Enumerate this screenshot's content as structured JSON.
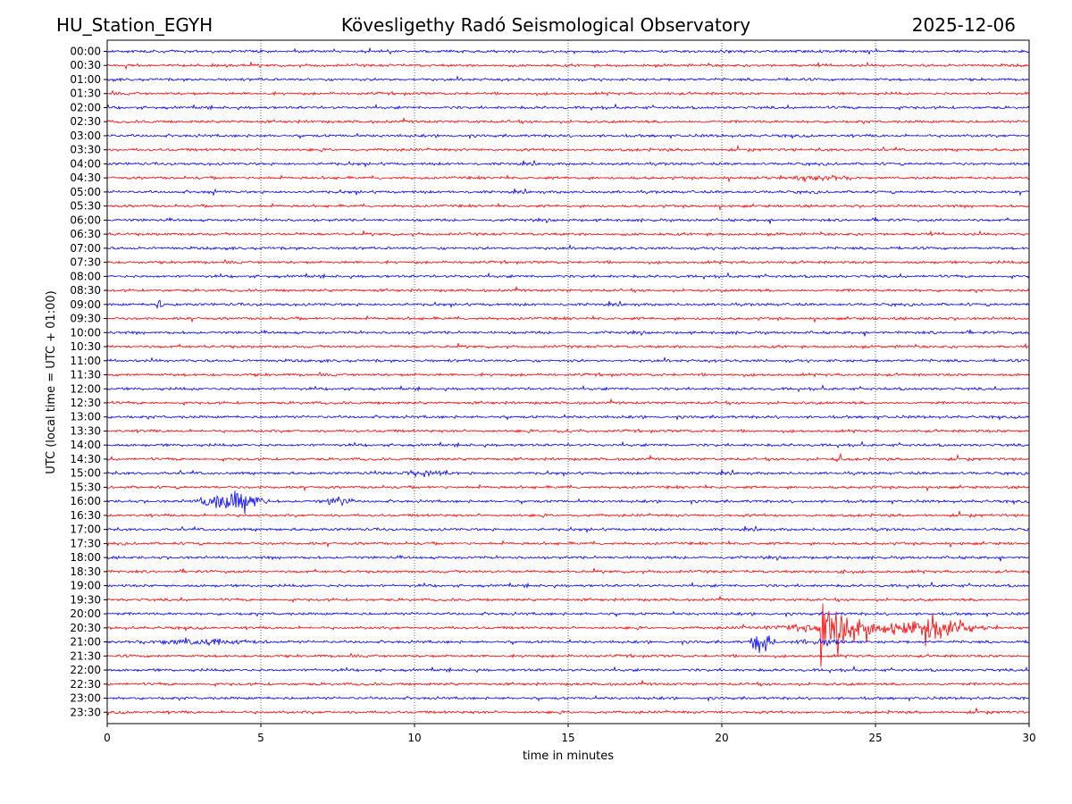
{
  "header": {
    "station": "HU_Station_EGYH",
    "observatory": "Kövesligethy Radó Seismological Observatory",
    "date": "2025-12-06"
  },
  "chart_data": {
    "type": "line",
    "title": "Kövesligethy Radó Seismological Observatory",
    "xlabel": "time in minutes",
    "ylabel": "UTC (local time = UTC + 01:00)",
    "xlim": [
      0,
      30
    ],
    "xticks": [
      "0",
      "5",
      "10",
      "15",
      "20",
      "25",
      "30"
    ],
    "xtick_values": [
      0,
      5,
      10,
      15,
      20,
      25,
      30
    ],
    "grid": "vertical dotted lines at x ticks",
    "colors": {
      "even_rows": "#0000ff",
      "odd_rows": "#ff0000"
    },
    "rows": [
      "00:00",
      "00:30",
      "01:00",
      "01:30",
      "02:00",
      "02:30",
      "03:00",
      "03:30",
      "04:00",
      "04:30",
      "05:00",
      "05:30",
      "06:00",
      "06:30",
      "07:00",
      "07:30",
      "08:00",
      "08:30",
      "09:00",
      "09:30",
      "10:00",
      "10:30",
      "11:00",
      "11:30",
      "12:00",
      "12:30",
      "13:00",
      "13:30",
      "14:00",
      "14:30",
      "15:00",
      "15:30",
      "16:00",
      "16:30",
      "17:00",
      "17:30",
      "18:00",
      "18:30",
      "19:00",
      "19:30",
      "20:00",
      "20:30",
      "21:00",
      "21:30",
      "22:00",
      "22:30",
      "23:00",
      "23:30"
    ],
    "events": [
      {
        "row": "04:30",
        "start": 20.5,
        "end": 25.5,
        "amplitude": 0.25
      },
      {
        "row": "05:00",
        "start": 3.3,
        "end": 3.7,
        "amplitude": 0.3
      },
      {
        "row": "09:00",
        "start": 1.5,
        "end": 1.9,
        "amplitude": 0.4
      },
      {
        "row": "13:30",
        "start": 14.5,
        "end": 16.0,
        "amplitude": 0.2
      },
      {
        "row": "14:30",
        "start": 23.6,
        "end": 24.0,
        "amplitude": 0.5
      },
      {
        "row": "15:00",
        "start": 8.5,
        "end": 12.0,
        "amplitude": 0.25
      },
      {
        "row": "16:00",
        "start": 2.6,
        "end": 5.5,
        "amplitude": 0.9
      },
      {
        "row": "16:00",
        "start": 6.8,
        "end": 8.0,
        "amplitude": 0.5
      },
      {
        "row": "18:30",
        "start": 23.7,
        "end": 24.1,
        "amplitude": 0.45
      },
      {
        "row": "20:30",
        "start": 20.5,
        "end": 30.0,
        "amplitude": 0.55
      },
      {
        "row": "20:30",
        "start": 23.2,
        "end": 25.5,
        "amplitude": 3.8
      },
      {
        "row": "20:30",
        "start": 25.5,
        "end": 28.5,
        "amplitude": 1.0
      },
      {
        "row": "21:00",
        "start": 0.0,
        "end": 6.0,
        "amplitude": 0.3
      },
      {
        "row": "21:00",
        "start": 20.8,
        "end": 21.8,
        "amplitude": 0.9
      },
      {
        "row": "21:00",
        "start": 21.8,
        "end": 24.5,
        "amplitude": 0.3
      }
    ]
  }
}
